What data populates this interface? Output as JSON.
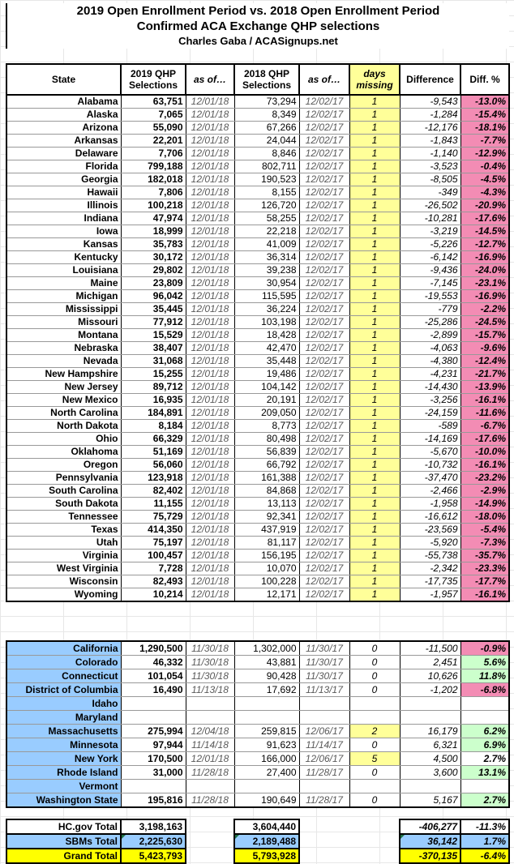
{
  "title": {
    "line1": "2019 Open Enrollment Period vs. 2018 Open Enrollment Period",
    "line2": "Confirmed ACA Exchange QHP selections",
    "line3": "Charles Gaba / ACASignups.net"
  },
  "colors": {
    "light_yellow": "#FFFF99",
    "bright_yellow": "#FFFF00",
    "pink": "#F38CB4",
    "green": "#CCFFCC",
    "blue": "#99CCFF"
  },
  "chart_data": {
    "type": "table",
    "columns": [
      {
        "label": "State"
      },
      {
        "label": "2019 QHP\nSelections"
      },
      {
        "label": "as of…",
        "italic": true
      },
      {
        "label": "2018 QHP\nSelections"
      },
      {
        "label": "as of…",
        "italic": true
      },
      {
        "label": "days\nmissing",
        "italic": true,
        "bg": "yellow"
      },
      {
        "label": "Difference"
      },
      {
        "label": "Diff. %"
      }
    ],
    "hcgov_rows": [
      {
        "state": "Alabama",
        "sel_2019": "63,751",
        "asof_2019": "12/01/18",
        "sel_2018": "73,294",
        "asof_2018": "12/02/17",
        "days": "1",
        "days_bg": "yellow",
        "diff": "-9,543",
        "pct": "-13.0%",
        "pct_bg": "pink"
      },
      {
        "state": "Alaska",
        "sel_2019": "7,065",
        "asof_2019": "12/01/18",
        "sel_2018": "8,349",
        "asof_2018": "12/02/17",
        "days": "1",
        "days_bg": "yellow",
        "diff": "-1,284",
        "pct": "-15.4%",
        "pct_bg": "pink"
      },
      {
        "state": "Arizona",
        "sel_2019": "55,090",
        "asof_2019": "12/01/18",
        "sel_2018": "67,266",
        "asof_2018": "12/02/17",
        "days": "1",
        "days_bg": "yellow",
        "diff": "-12,176",
        "pct": "-18.1%",
        "pct_bg": "pink"
      },
      {
        "state": "Arkansas",
        "sel_2019": "22,201",
        "asof_2019": "12/01/18",
        "sel_2018": "24,044",
        "asof_2018": "12/02/17",
        "days": "1",
        "days_bg": "yellow",
        "diff": "-1,843",
        "pct": "-7.7%",
        "pct_bg": "pink"
      },
      {
        "state": "Delaware",
        "sel_2019": "7,706",
        "asof_2019": "12/01/18",
        "sel_2018": "8,846",
        "asof_2018": "12/02/17",
        "days": "1",
        "days_bg": "yellow",
        "diff": "-1,140",
        "pct": "-12.9%",
        "pct_bg": "pink"
      },
      {
        "state": "Florida",
        "sel_2019": "799,188",
        "asof_2019": "12/01/18",
        "sel_2018": "802,711",
        "asof_2018": "12/02/17",
        "days": "1",
        "days_bg": "yellow",
        "diff": "-3,523",
        "pct": "-0.4%",
        "pct_bg": "pink"
      },
      {
        "state": "Georgia",
        "sel_2019": "182,018",
        "asof_2019": "12/01/18",
        "sel_2018": "190,523",
        "asof_2018": "12/02/17",
        "days": "1",
        "days_bg": "yellow",
        "diff": "-8,505",
        "pct": "-4.5%",
        "pct_bg": "pink"
      },
      {
        "state": "Hawaii",
        "sel_2019": "7,806",
        "asof_2019": "12/01/18",
        "sel_2018": "8,155",
        "asof_2018": "12/02/17",
        "days": "1",
        "days_bg": "yellow",
        "diff": "-349",
        "pct": "-4.3%",
        "pct_bg": "pink"
      },
      {
        "state": "Illinois",
        "sel_2019": "100,218",
        "asof_2019": "12/01/18",
        "sel_2018": "126,720",
        "asof_2018": "12/02/17",
        "days": "1",
        "days_bg": "yellow",
        "diff": "-26,502",
        "pct": "-20.9%",
        "pct_bg": "pink"
      },
      {
        "state": "Indiana",
        "sel_2019": "47,974",
        "asof_2019": "12/01/18",
        "sel_2018": "58,255",
        "asof_2018": "12/02/17",
        "days": "1",
        "days_bg": "yellow",
        "diff": "-10,281",
        "pct": "-17.6%",
        "pct_bg": "pink"
      },
      {
        "state": "Iowa",
        "sel_2019": "18,999",
        "asof_2019": "12/01/18",
        "sel_2018": "22,218",
        "asof_2018": "12/02/17",
        "days": "1",
        "days_bg": "yellow",
        "diff": "-3,219",
        "pct": "-14.5%",
        "pct_bg": "pink"
      },
      {
        "state": "Kansas",
        "sel_2019": "35,783",
        "asof_2019": "12/01/18",
        "sel_2018": "41,009",
        "asof_2018": "12/02/17",
        "days": "1",
        "days_bg": "yellow",
        "diff": "-5,226",
        "pct": "-12.7%",
        "pct_bg": "pink"
      },
      {
        "state": "Kentucky",
        "sel_2019": "30,172",
        "asof_2019": "12/01/18",
        "sel_2018": "36,314",
        "asof_2018": "12/02/17",
        "days": "1",
        "days_bg": "yellow",
        "diff": "-6,142",
        "pct": "-16.9%",
        "pct_bg": "pink"
      },
      {
        "state": "Louisiana",
        "sel_2019": "29,802",
        "asof_2019": "12/01/18",
        "sel_2018": "39,238",
        "asof_2018": "12/02/17",
        "days": "1",
        "days_bg": "yellow",
        "diff": "-9,436",
        "pct": "-24.0%",
        "pct_bg": "pink"
      },
      {
        "state": "Maine",
        "sel_2019": "23,809",
        "asof_2019": "12/01/18",
        "sel_2018": "30,954",
        "asof_2018": "12/02/17",
        "days": "1",
        "days_bg": "yellow",
        "diff": "-7,145",
        "pct": "-23.1%",
        "pct_bg": "pink"
      },
      {
        "state": "Michigan",
        "sel_2019": "96,042",
        "asof_2019": "12/01/18",
        "sel_2018": "115,595",
        "asof_2018": "12/02/17",
        "days": "1",
        "days_bg": "yellow",
        "diff": "-19,553",
        "pct": "-16.9%",
        "pct_bg": "pink"
      },
      {
        "state": "Mississippi",
        "sel_2019": "35,445",
        "asof_2019": "12/01/18",
        "sel_2018": "36,224",
        "asof_2018": "12/02/17",
        "days": "1",
        "days_bg": "yellow",
        "diff": "-779",
        "pct": "-2.2%",
        "pct_bg": "pink"
      },
      {
        "state": "Missouri",
        "sel_2019": "77,912",
        "asof_2019": "12/01/18",
        "sel_2018": "103,198",
        "asof_2018": "12/02/17",
        "days": "1",
        "days_bg": "yellow",
        "diff": "-25,286",
        "pct": "-24.5%",
        "pct_bg": "pink"
      },
      {
        "state": "Montana",
        "sel_2019": "15,529",
        "asof_2019": "12/01/18",
        "sel_2018": "18,428",
        "asof_2018": "12/02/17",
        "days": "1",
        "days_bg": "yellow",
        "diff": "-2,899",
        "pct": "-15.7%",
        "pct_bg": "pink"
      },
      {
        "state": "Nebraska",
        "sel_2019": "38,407",
        "asof_2019": "12/01/18",
        "sel_2018": "42,470",
        "asof_2018": "12/02/17",
        "days": "1",
        "days_bg": "yellow",
        "diff": "-4,063",
        "pct": "-9.6%",
        "pct_bg": "pink"
      },
      {
        "state": "Nevada",
        "sel_2019": "31,068",
        "asof_2019": "12/01/18",
        "sel_2018": "35,448",
        "asof_2018": "12/02/17",
        "days": "1",
        "days_bg": "yellow",
        "diff": "-4,380",
        "pct": "-12.4%",
        "pct_bg": "pink"
      },
      {
        "state": "New Hampshire",
        "sel_2019": "15,255",
        "asof_2019": "12/01/18",
        "sel_2018": "19,486",
        "asof_2018": "12/02/17",
        "days": "1",
        "days_bg": "yellow",
        "diff": "-4,231",
        "pct": "-21.7%",
        "pct_bg": "pink"
      },
      {
        "state": "New Jersey",
        "sel_2019": "89,712",
        "asof_2019": "12/01/18",
        "sel_2018": "104,142",
        "asof_2018": "12/02/17",
        "days": "1",
        "days_bg": "yellow",
        "diff": "-14,430",
        "pct": "-13.9%",
        "pct_bg": "pink"
      },
      {
        "state": "New Mexico",
        "sel_2019": "16,935",
        "asof_2019": "12/01/18",
        "sel_2018": "20,191",
        "asof_2018": "12/02/17",
        "days": "1",
        "days_bg": "yellow",
        "diff": "-3,256",
        "pct": "-16.1%",
        "pct_bg": "pink"
      },
      {
        "state": "North Carolina",
        "sel_2019": "184,891",
        "asof_2019": "12/01/18",
        "sel_2018": "209,050",
        "asof_2018": "12/02/17",
        "days": "1",
        "days_bg": "yellow",
        "diff": "-24,159",
        "pct": "-11.6%",
        "pct_bg": "pink"
      },
      {
        "state": "North Dakota",
        "sel_2019": "8,184",
        "asof_2019": "12/01/18",
        "sel_2018": "8,773",
        "asof_2018": "12/02/17",
        "days": "1",
        "days_bg": "yellow",
        "diff": "-589",
        "pct": "-6.7%",
        "pct_bg": "pink"
      },
      {
        "state": "Ohio",
        "sel_2019": "66,329",
        "asof_2019": "12/01/18",
        "sel_2018": "80,498",
        "asof_2018": "12/02/17",
        "days": "1",
        "days_bg": "yellow",
        "diff": "-14,169",
        "pct": "-17.6%",
        "pct_bg": "pink"
      },
      {
        "state": "Oklahoma",
        "sel_2019": "51,169",
        "asof_2019": "12/01/18",
        "sel_2018": "56,839",
        "asof_2018": "12/02/17",
        "days": "1",
        "days_bg": "yellow",
        "diff": "-5,670",
        "pct": "-10.0%",
        "pct_bg": "pink"
      },
      {
        "state": "Oregon",
        "sel_2019": "56,060",
        "asof_2019": "12/01/18",
        "sel_2018": "66,792",
        "asof_2018": "12/02/17",
        "days": "1",
        "days_bg": "yellow",
        "diff": "-10,732",
        "pct": "-16.1%",
        "pct_bg": "pink"
      },
      {
        "state": "Pennsylvania",
        "sel_2019": "123,918",
        "asof_2019": "12/01/18",
        "sel_2018": "161,388",
        "asof_2018": "12/02/17",
        "days": "1",
        "days_bg": "yellow",
        "diff": "-37,470",
        "pct": "-23.2%",
        "pct_bg": "pink"
      },
      {
        "state": "South Carolina",
        "sel_2019": "82,402",
        "asof_2019": "12/01/18",
        "sel_2018": "84,868",
        "asof_2018": "12/02/17",
        "days": "1",
        "days_bg": "yellow",
        "diff": "-2,466",
        "pct": "-2.9%",
        "pct_bg": "pink"
      },
      {
        "state": "South Dakota",
        "sel_2019": "11,155",
        "asof_2019": "12/01/18",
        "sel_2018": "13,113",
        "asof_2018": "12/02/17",
        "days": "1",
        "days_bg": "yellow",
        "diff": "-1,958",
        "pct": "-14.9%",
        "pct_bg": "pink"
      },
      {
        "state": "Tennessee",
        "sel_2019": "75,729",
        "asof_2019": "12/01/18",
        "sel_2018": "92,341",
        "asof_2018": "12/02/17",
        "days": "1",
        "days_bg": "yellow",
        "diff": "-16,612",
        "pct": "-18.0%",
        "pct_bg": "pink"
      },
      {
        "state": "Texas",
        "sel_2019": "414,350",
        "asof_2019": "12/01/18",
        "sel_2018": "437,919",
        "asof_2018": "12/02/17",
        "days": "1",
        "days_bg": "yellow",
        "diff": "-23,569",
        "pct": "-5.4%",
        "pct_bg": "pink"
      },
      {
        "state": "Utah",
        "sel_2019": "75,197",
        "asof_2019": "12/01/18",
        "sel_2018": "81,117",
        "asof_2018": "12/02/17",
        "days": "1",
        "days_bg": "yellow",
        "diff": "-5,920",
        "pct": "-7.3%",
        "pct_bg": "pink"
      },
      {
        "state": "Virginia",
        "sel_2019": "100,457",
        "asof_2019": "12/01/18",
        "sel_2018": "156,195",
        "asof_2018": "12/02/17",
        "days": "1",
        "days_bg": "yellow",
        "diff": "-55,738",
        "pct": "-35.7%",
        "pct_bg": "pink"
      },
      {
        "state": "West Virginia",
        "sel_2019": "7,728",
        "asof_2019": "12/01/18",
        "sel_2018": "10,070",
        "asof_2018": "12/02/17",
        "days": "1",
        "days_bg": "yellow",
        "diff": "-2,342",
        "pct": "-23.3%",
        "pct_bg": "pink"
      },
      {
        "state": "Wisconsin",
        "sel_2019": "82,493",
        "asof_2019": "12/01/18",
        "sel_2018": "100,228",
        "asof_2018": "12/02/17",
        "days": "1",
        "days_bg": "yellow",
        "diff": "-17,735",
        "pct": "-17.7%",
        "pct_bg": "pink"
      },
      {
        "state": "Wyoming",
        "sel_2019": "10,214",
        "asof_2019": "12/01/18",
        "sel_2018": "12,171",
        "asof_2018": "12/02/17",
        "days": "1",
        "days_bg": "yellow",
        "diff": "-1,957",
        "pct": "-16.1%",
        "pct_bg": "pink"
      }
    ],
    "sbm_rows": [
      {
        "state": "California",
        "sel_2019": "1,290,500",
        "asof_2019": "11/30/18",
        "sel_2018": "1,302,000",
        "asof_2018": "11/30/17",
        "days": "0",
        "days_bg": "none",
        "diff": "-11,500",
        "pct": "-0.9%",
        "pct_bg": "pink"
      },
      {
        "state": "Colorado",
        "sel_2019": "46,332",
        "asof_2019": "11/30/18",
        "sel_2018": "43,881",
        "asof_2018": "11/30/17",
        "days": "0",
        "days_bg": "none",
        "diff": "2,451",
        "pct": "5.6%",
        "pct_bg": "green"
      },
      {
        "state": "Connecticut",
        "sel_2019": "101,054",
        "asof_2019": "11/30/18",
        "sel_2018": "90,428",
        "asof_2018": "11/30/17",
        "days": "0",
        "days_bg": "none",
        "diff": "10,626",
        "pct": "11.8%",
        "pct_bg": "green"
      },
      {
        "state": "District of Columbia",
        "sel_2019": "16,490",
        "asof_2019": "11/13/18",
        "sel_2018": "17,692",
        "asof_2018": "11/13/17",
        "days": "0",
        "days_bg": "none",
        "diff": "-1,202",
        "pct": "-6.8%",
        "pct_bg": "pink"
      },
      {
        "state": "Idaho",
        "sel_2019": "",
        "asof_2019": "",
        "sel_2018": "",
        "asof_2018": "",
        "days": "",
        "days_bg": "none",
        "diff": "",
        "pct": "",
        "pct_bg": "none"
      },
      {
        "state": "Maryland",
        "sel_2019": "",
        "asof_2019": "",
        "sel_2018": "",
        "asof_2018": "",
        "days": "",
        "days_bg": "none",
        "diff": "",
        "pct": "",
        "pct_bg": "none"
      },
      {
        "state": "Massachusetts",
        "sel_2019": "275,994",
        "asof_2019": "12/04/18",
        "sel_2018": "259,815",
        "asof_2018": "12/06/17",
        "days": "2",
        "days_bg": "yellow",
        "diff": "16,179",
        "pct": "6.2%",
        "pct_bg": "green"
      },
      {
        "state": "Minnesota",
        "sel_2019": "97,944",
        "asof_2019": "11/14/18",
        "sel_2018": "91,623",
        "asof_2018": "11/14/17",
        "days": "0",
        "days_bg": "none",
        "diff": "6,321",
        "pct": "6.9%",
        "pct_bg": "green"
      },
      {
        "state": "New York",
        "sel_2019": "170,500",
        "asof_2019": "12/01/18",
        "sel_2018": "166,000",
        "asof_2018": "12/06/17",
        "days": "5",
        "days_bg": "yellow",
        "diff": "4,500",
        "pct": "2.7%",
        "pct_bg": "none"
      },
      {
        "state": "Rhode Island",
        "sel_2019": "31,000",
        "asof_2019": "11/28/18",
        "sel_2018": "27,400",
        "asof_2018": "11/28/17",
        "days": "0",
        "days_bg": "none",
        "diff": "3,600",
        "pct": "13.1%",
        "pct_bg": "green"
      },
      {
        "state": "Vermont",
        "sel_2019": "",
        "asof_2019": "",
        "sel_2018": "",
        "asof_2018": "",
        "days": "",
        "days_bg": "none",
        "diff": "",
        "pct": "",
        "pct_bg": "none"
      },
      {
        "state": "Washington State",
        "sel_2019": "195,816",
        "asof_2019": "11/28/18",
        "sel_2018": "190,649",
        "asof_2018": "11/28/17",
        "days": "0",
        "days_bg": "none",
        "diff": "5,167",
        "pct": "2.7%",
        "pct_bg": "green"
      }
    ],
    "total_rows": [
      {
        "label": "HC.gov Total",
        "sel_2019": "3,198,163",
        "sel_2018": "3,604,440",
        "diff": "-406,277",
        "pct": "-11.3%",
        "row_bg": "none",
        "comment_markers": false
      },
      {
        "label": "SBMs Total",
        "sel_2019": "2,225,630",
        "sel_2018": "2,189,488",
        "diff": "36,142",
        "pct": "1.7%",
        "row_bg": "blue",
        "comment_markers": true
      },
      {
        "label": "Grand Total",
        "sel_2019": "5,423,793",
        "sel_2018": "5,793,928",
        "diff": "-370,135",
        "pct": "-6.4%",
        "row_bg": "byellow",
        "comment_markers": false
      }
    ]
  }
}
